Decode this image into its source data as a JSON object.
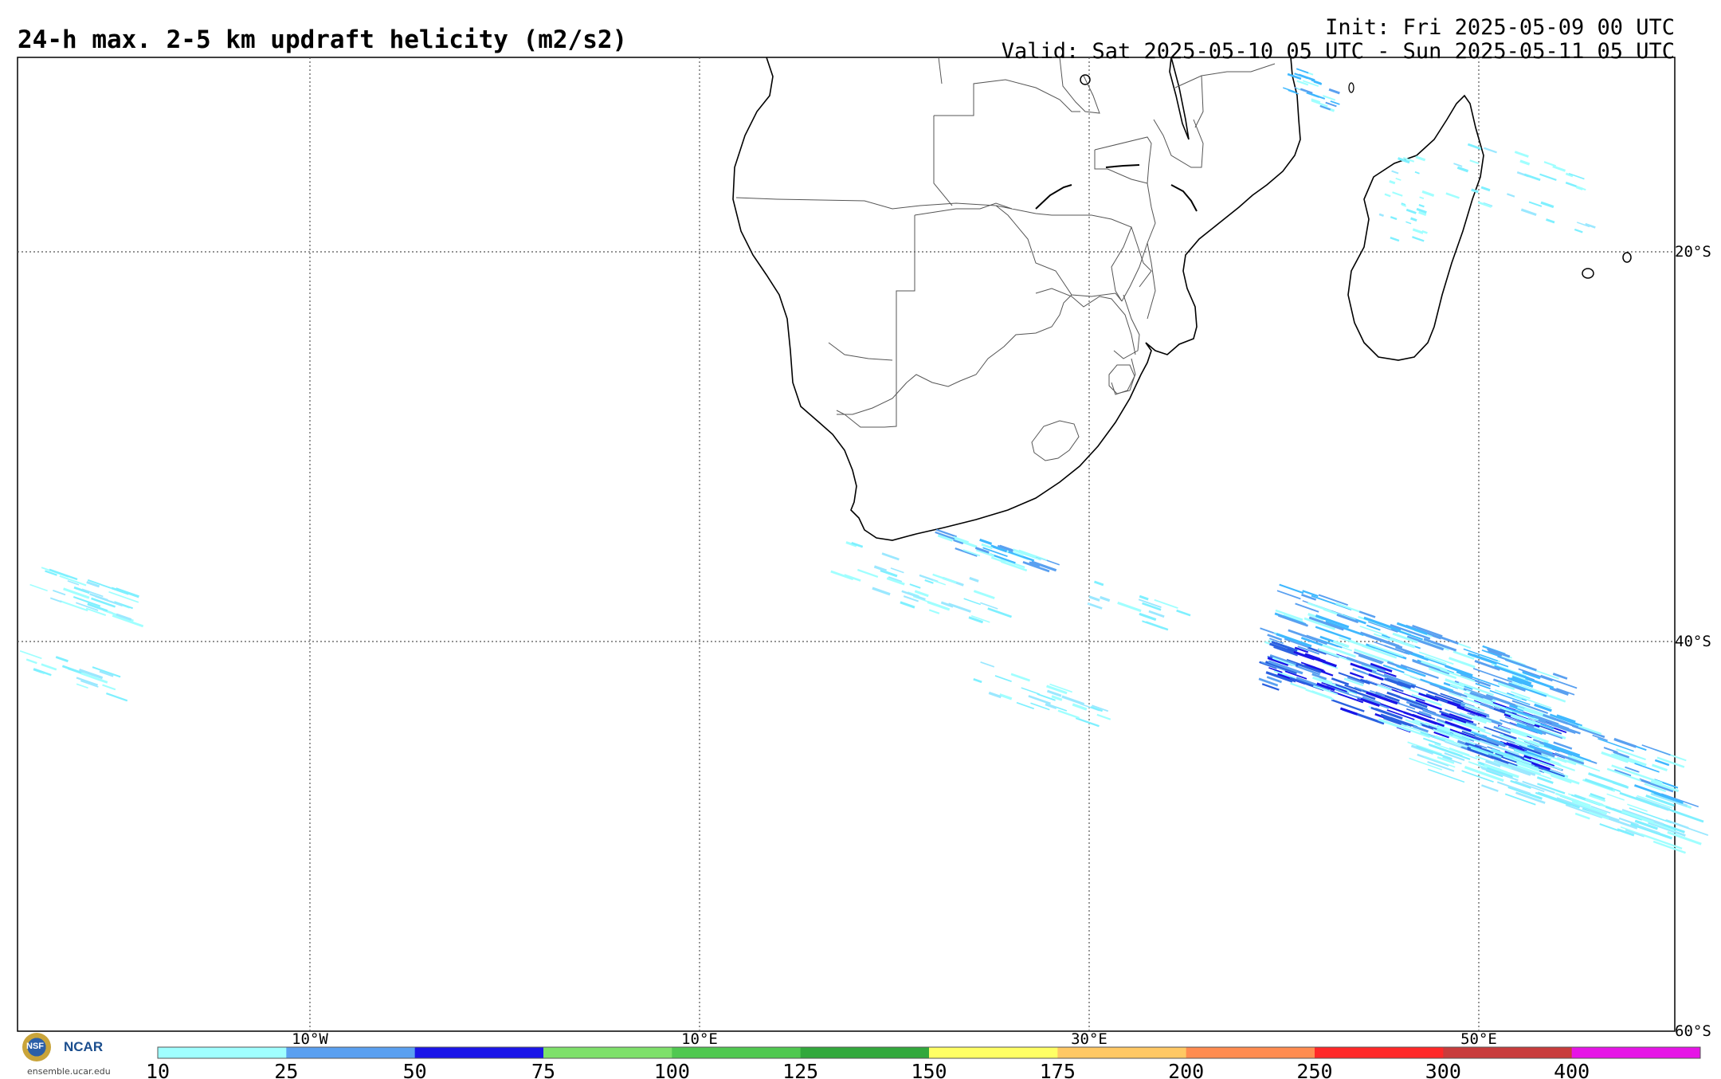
{
  "header": {
    "title": "24-h max. 2-5 km updraft helicity (m2/s2)",
    "init": "Init: Fri 2025-05-09 00 UTC",
    "valid": "Valid: Sat 2025-05-10 05 UTC - Sun 2025-05-11 05 UTC"
  },
  "map": {
    "longitude_labels": [
      "10°W",
      "10°E",
      "30°E",
      "50°E"
    ],
    "latitude_labels": [
      "20°S",
      "40°S",
      "60°S"
    ],
    "gridlines": true
  },
  "colorbar": {
    "ticks": [
      "10",
      "25",
      "50",
      "75",
      "100",
      "125",
      "150",
      "175",
      "200",
      "250",
      "300",
      "400"
    ],
    "colors": [
      "#a0ffff",
      "#5aa0f0",
      "#1a14e8",
      "#7ee06a",
      "#50c850",
      "#32a83c",
      "#ffff64",
      "#ffc864",
      "#ff8c50",
      "#ff2828",
      "#c83c3c",
      "#e614e6"
    ]
  },
  "logos": {
    "nsf": "NSF",
    "ncar": "NCAR",
    "site": "ensemble.ucar.edu"
  }
}
